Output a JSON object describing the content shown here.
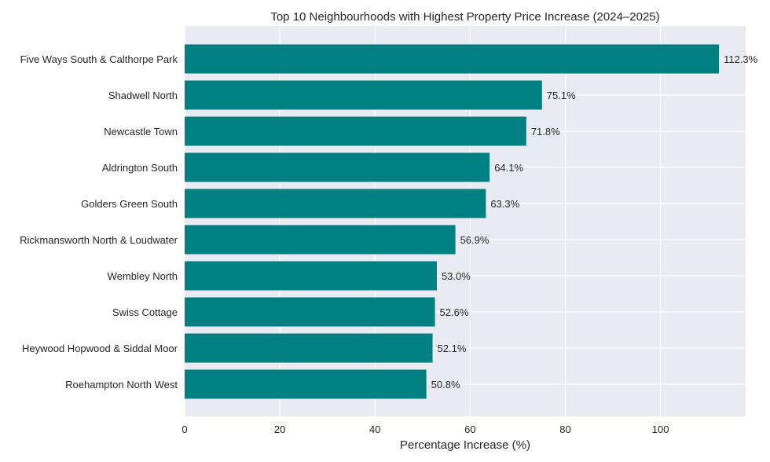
{
  "chart_data": {
    "type": "bar",
    "orientation": "horizontal",
    "title": "Top 10 Neighbourhoods with Highest Property Price Increase (2024–2025)",
    "xlabel": "Percentage Increase (%)",
    "ylabel": "",
    "categories": [
      "Five Ways South & Calthorpe Park",
      "Shadwell North",
      "Newcastle Town",
      "Aldrington South",
      "Golders Green South",
      "Rickmansworth North & Loudwater",
      "Wembley North",
      "Swiss Cottage",
      "Heywood Hopwood & Siddal Moor",
      "Roehampton North West"
    ],
    "values": [
      112.3,
      75.1,
      71.8,
      64.1,
      63.3,
      56.9,
      53.0,
      52.6,
      52.1,
      50.8
    ],
    "data_labels": [
      "112.3%",
      "75.1%",
      "71.8%",
      "64.1%",
      "63.3%",
      "56.9%",
      "53.0%",
      "52.6%",
      "52.1%",
      "50.8%"
    ],
    "xlim": [
      0,
      117.9
    ],
    "xticks": [
      0,
      20,
      40,
      60,
      80,
      100
    ],
    "grid": true,
    "colors": {
      "bar": "#008080",
      "plot_background": "#eaeaf2",
      "grid": "#ffffff"
    }
  }
}
